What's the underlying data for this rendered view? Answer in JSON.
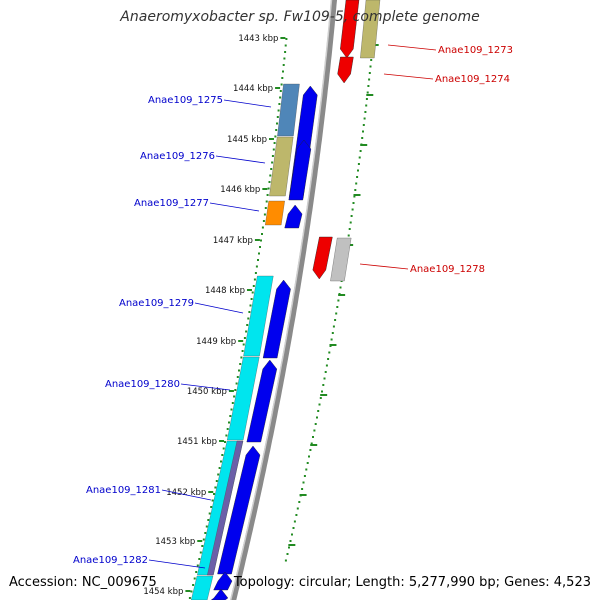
{
  "title": "Anaeromyxobacter sp. Fw109-5, complete genome",
  "footer": {
    "accession": "Accession: NC_009675",
    "summary": "Topology: circular; Length: 5,277,990 bp; Genes: 4,523"
  },
  "colors": {
    "backbone": "#888888",
    "reverse_cds": "#0000ee",
    "forward_cds": "#ee0000",
    "left_labels": "#0000cc",
    "right_labels": "#cc0000",
    "ticks": "#228b22"
  },
  "kbp_ticks": [
    "1443 kbp",
    "1444 kbp",
    "1445 kbp",
    "1446 kbp",
    "1447 kbp",
    "1448 kbp",
    "1449 kbp",
    "1450 kbp",
    "1451 kbp",
    "1452 kbp",
    "1453 kbp",
    "1454 kbp"
  ],
  "genes_left": [
    "Anae109_1275",
    "Anae109_1276",
    "Anae109_1277",
    "Anae109_1279",
    "Anae109_1280",
    "Anae109_1281",
    "Anae109_1282"
  ],
  "genes_right": [
    "Anae109_1273",
    "Anae109_1274",
    "Anae109_1278"
  ]
}
